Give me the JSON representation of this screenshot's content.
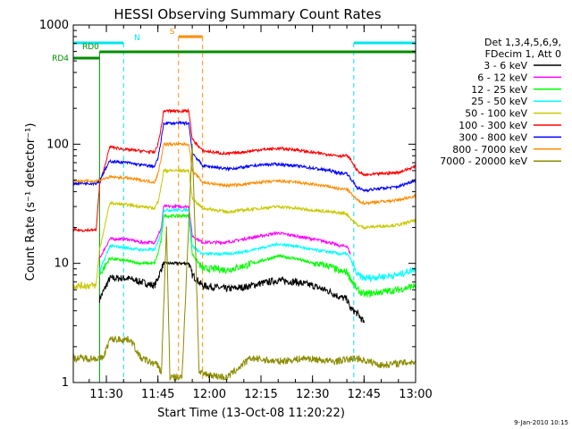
{
  "chart_data": {
    "type": "line",
    "title": "HESSI Observing Summary Count Rates",
    "xlabel": "Start Time (13-Oct-08 11:20:22)",
    "ylabel": "Count Rate (s⁻¹ detector⁻¹)",
    "yscale": "log",
    "ylim": [
      1,
      1000
    ],
    "xlim": [
      "11:20:22",
      "13:00"
    ],
    "x_ticks": [
      "11:30",
      "11:45",
      "12:00",
      "12:15",
      "12:30",
      "12:45",
      "13:00"
    ],
    "y_ticks": [
      "1",
      "10",
      "100",
      "1000"
    ],
    "footer_date": "9-Jan-2010 10:15",
    "legend_header": [
      "Det 1,3,4,5,6,9,",
      "FDecim 1, Att 0"
    ],
    "legend_position": "right",
    "flags": [
      {
        "label": "N",
        "color": "#00e5ee",
        "segments": [
          [
            "11:20:22",
            "11:35"
          ],
          [
            "12:42",
            "13:00"
          ]
        ]
      },
      {
        "label": "RD0",
        "color": "#008c00",
        "segments": [
          [
            "11:28",
            "13:00"
          ]
        ]
      },
      {
        "label": "RD4",
        "color": "#008c00",
        "segments": [
          [
            "11:20:22",
            "11:28"
          ]
        ]
      },
      {
        "label": "S",
        "color": "#ff8c00",
        "segments": [
          [
            "11:51",
            "11:58"
          ]
        ]
      }
    ],
    "series": [
      {
        "name": "3 - 6 keV",
        "color": "#000000",
        "points": [
          [
            "11:28",
            5
          ],
          [
            "11:31",
            7.5
          ],
          [
            "11:36",
            7.5
          ],
          [
            "11:40",
            7
          ],
          [
            "11:44",
            6.5
          ],
          [
            "11:45",
            7.5
          ],
          [
            "11:46",
            9
          ],
          [
            "11:46:40",
            10
          ],
          [
            "11:54",
            10
          ],
          [
            "11:55",
            8
          ],
          [
            "11:58",
            6.5
          ],
          [
            "12:02",
            6.3
          ],
          [
            "12:05",
            6.1
          ],
          [
            "12:10",
            6.3
          ],
          [
            "12:15",
            6.8
          ],
          [
            "12:20",
            7.2
          ],
          [
            "12:25",
            7
          ],
          [
            "12:30",
            6.5
          ],
          [
            "12:35",
            5.8
          ],
          [
            "12:38",
            5.2
          ],
          [
            "12:40",
            5
          ],
          [
            "12:41",
            4.2
          ],
          [
            "12:43",
            3.8
          ],
          [
            "12:45",
            3.2
          ]
        ]
      },
      {
        "name": "6 - 12 keV",
        "color": "#ff00ff",
        "points": [
          [
            "11:28",
            11
          ],
          [
            "11:31",
            16
          ],
          [
            "11:36",
            16
          ],
          [
            "11:40",
            15
          ],
          [
            "11:44",
            15
          ],
          [
            "11:45",
            17
          ],
          [
            "11:46",
            20
          ],
          [
            "11:46:40",
            30
          ],
          [
            "11:54",
            30
          ],
          [
            "11:55",
            17
          ],
          [
            "11:58",
            15
          ],
          [
            "12:02",
            15
          ],
          [
            "12:05",
            15
          ],
          [
            "12:10",
            16
          ],
          [
            "12:15",
            17
          ],
          [
            "12:20",
            18
          ],
          [
            "12:25",
            17
          ],
          [
            "12:30",
            16
          ],
          [
            "12:35",
            15
          ],
          [
            "12:38",
            14
          ],
          [
            "12:40",
            14
          ],
          [
            "12:41",
            12
          ]
        ]
      },
      {
        "name": "12 - 25 keV",
        "color": "#00ff00",
        "points": [
          [
            "11:28",
            8
          ],
          [
            "11:31",
            11
          ],
          [
            "11:36",
            10.5
          ],
          [
            "11:40",
            10
          ],
          [
            "11:44",
            10
          ],
          [
            "11:45",
            12
          ],
          [
            "11:46",
            16
          ],
          [
            "11:46:40",
            25
          ],
          [
            "11:54",
            25
          ],
          [
            "11:55",
            12
          ],
          [
            "11:58",
            9
          ],
          [
            "12:02",
            9
          ],
          [
            "12:05",
            8.8
          ],
          [
            "12:10",
            9.5
          ],
          [
            "12:15",
            10.5
          ],
          [
            "12:20",
            11.5
          ],
          [
            "12:25",
            11
          ],
          [
            "12:30",
            10
          ],
          [
            "12:35",
            9.5
          ],
          [
            "12:38",
            8.5
          ],
          [
            "12:40",
            8.5
          ],
          [
            "12:41",
            7.5
          ],
          [
            "12:43",
            6
          ],
          [
            "12:45",
            5.5
          ],
          [
            "12:55",
            6
          ],
          [
            "13:00",
            6.5
          ]
        ]
      },
      {
        "name": "25 - 50 keV",
        "color": "#00ffff",
        "points": [
          [
            "11:28",
            8.5
          ],
          [
            "11:31",
            14
          ],
          [
            "11:36",
            13.5
          ],
          [
            "11:40",
            13
          ],
          [
            "11:44",
            13
          ],
          [
            "11:45",
            15
          ],
          [
            "11:46",
            19
          ],
          [
            "11:46:40",
            28
          ],
          [
            "11:54",
            28
          ],
          [
            "11:55",
            14
          ],
          [
            "11:58",
            12
          ],
          [
            "12:02",
            12
          ],
          [
            "12:05",
            12
          ],
          [
            "12:10",
            12.5
          ],
          [
            "12:15",
            13.5
          ],
          [
            "12:20",
            14.5
          ],
          [
            "12:25",
            14
          ],
          [
            "12:30",
            13
          ],
          [
            "12:35",
            12.5
          ],
          [
            "12:38",
            12
          ],
          [
            "12:40",
            12
          ],
          [
            "12:41",
            11
          ],
          [
            "12:43",
            8
          ],
          [
            "12:45",
            7.5
          ],
          [
            "12:55",
            8
          ],
          [
            "13:00",
            9
          ]
        ]
      },
      {
        "name": "50 - 100 keV",
        "color": "#c8c800",
        "points": [
          [
            "11:20:22",
            6.5
          ],
          [
            "11:27",
            6.5
          ],
          [
            "11:28",
            13
          ],
          [
            "11:31",
            32
          ],
          [
            "11:36",
            31
          ],
          [
            "11:40",
            30
          ],
          [
            "11:44",
            29
          ],
          [
            "11:45",
            33
          ],
          [
            "11:46",
            45
          ],
          [
            "11:46:40",
            60
          ],
          [
            "11:54",
            60
          ],
          [
            "11:55",
            35
          ],
          [
            "11:58",
            29
          ],
          [
            "12:02",
            28
          ],
          [
            "12:05",
            27
          ],
          [
            "12:10",
            28
          ],
          [
            "12:15",
            29
          ],
          [
            "12:20",
            30
          ],
          [
            "12:25",
            29
          ],
          [
            "12:30",
            28
          ],
          [
            "12:35",
            27
          ],
          [
            "12:38",
            26.5
          ],
          [
            "12:40",
            26
          ],
          [
            "12:41",
            24
          ],
          [
            "12:43",
            21
          ],
          [
            "12:45",
            20
          ],
          [
            "12:55",
            21
          ],
          [
            "13:00",
            23
          ]
        ]
      },
      {
        "name": "100 - 300 keV",
        "color": "#ff0000",
        "points": [
          [
            "11:20:22",
            19
          ],
          [
            "11:27",
            19
          ],
          [
            "11:28",
            45
          ],
          [
            "11:31",
            95
          ],
          [
            "11:36",
            90
          ],
          [
            "11:40",
            88
          ],
          [
            "11:44",
            85
          ],
          [
            "11:45",
            100
          ],
          [
            "11:46",
            140
          ],
          [
            "11:46:40",
            190
          ],
          [
            "11:54",
            190
          ],
          [
            "11:55",
            110
          ],
          [
            "11:58",
            88
          ],
          [
            "12:02",
            85
          ],
          [
            "12:05",
            83
          ],
          [
            "12:10",
            86
          ],
          [
            "12:15",
            90
          ],
          [
            "12:20",
            92
          ],
          [
            "12:25",
            90
          ],
          [
            "12:30",
            85
          ],
          [
            "12:35",
            82
          ],
          [
            "12:38",
            80
          ],
          [
            "12:40",
            80
          ],
          [
            "12:41",
            75
          ],
          [
            "12:43",
            60
          ],
          [
            "12:45",
            55
          ],
          [
            "12:55",
            58
          ],
          [
            "13:00",
            65
          ]
        ]
      },
      {
        "name": "300 - 800 keV",
        "color": "#0000ff",
        "points": [
          [
            "11:20:22",
            47
          ],
          [
            "11:27",
            47
          ],
          [
            "11:28",
            50
          ],
          [
            "11:31",
            72
          ],
          [
            "11:36",
            70
          ],
          [
            "11:40",
            67
          ],
          [
            "11:44",
            65
          ],
          [
            "11:45",
            76
          ],
          [
            "11:46",
            110
          ],
          [
            "11:46:40",
            150
          ],
          [
            "11:54",
            150
          ],
          [
            "11:55",
            85
          ],
          [
            "11:58",
            66
          ],
          [
            "12:02",
            64
          ],
          [
            "12:05",
            62
          ],
          [
            "12:10",
            64
          ],
          [
            "12:15",
            67
          ],
          [
            "12:20",
            68
          ],
          [
            "12:25",
            66
          ],
          [
            "12:30",
            63
          ],
          [
            "12:35",
            60
          ],
          [
            "12:38",
            57
          ],
          [
            "12:40",
            57
          ],
          [
            "12:41",
            52
          ],
          [
            "12:43",
            43
          ],
          [
            "12:45",
            41
          ],
          [
            "12:55",
            44
          ],
          [
            "13:00",
            50
          ]
        ]
      },
      {
        "name": "800 - 7000 keV",
        "color": "#ff8c00",
        "points": [
          [
            "11:20:22",
            49
          ],
          [
            "11:27",
            49
          ],
          [
            "11:28",
            50
          ],
          [
            "11:31",
            53
          ],
          [
            "11:36",
            52
          ],
          [
            "11:40",
            50
          ],
          [
            "11:44",
            48
          ],
          [
            "11:45",
            56
          ],
          [
            "11:46",
            78
          ],
          [
            "11:46:40",
            100
          ],
          [
            "11:54",
            100
          ],
          [
            "11:55",
            60
          ],
          [
            "11:58",
            48
          ],
          [
            "12:02",
            46
          ],
          [
            "12:05",
            45
          ],
          [
            "12:10",
            46
          ],
          [
            "12:15",
            48
          ],
          [
            "12:20",
            49
          ],
          [
            "12:25",
            48
          ],
          [
            "12:30",
            46
          ],
          [
            "12:35",
            44
          ],
          [
            "12:38",
            42
          ],
          [
            "12:40",
            42
          ],
          [
            "12:41",
            39
          ],
          [
            "12:43",
            34
          ],
          [
            "12:45",
            32
          ],
          [
            "12:55",
            34
          ],
          [
            "13:00",
            37
          ]
        ]
      },
      {
        "name": "7000 - 20000 keV",
        "color": "#8b8b00",
        "points": [
          [
            "11:20:22",
            1.6
          ],
          [
            "11:29",
            1.6
          ],
          [
            "11:31",
            2.3
          ],
          [
            "11:37",
            2.3
          ],
          [
            "11:40",
            1.6
          ],
          [
            "11:45",
            1.4
          ],
          [
            "11:46",
            1.2
          ],
          [
            "11:47:30",
            20
          ],
          [
            "11:48:30",
            1.1
          ],
          [
            "11:52",
            1.1
          ],
          [
            "11:55",
            100
          ],
          [
            "11:56",
            12
          ],
          [
            "11:57",
            1.2
          ],
          [
            "12:05",
            1.1
          ],
          [
            "12:12",
            1.6
          ],
          [
            "12:20",
            1.5
          ],
          [
            "12:28",
            1.6
          ],
          [
            "12:36",
            1.5
          ],
          [
            "12:43",
            1.6
          ],
          [
            "12:50",
            1.4
          ],
          [
            "13:00",
            1.5
          ]
        ]
      }
    ]
  }
}
